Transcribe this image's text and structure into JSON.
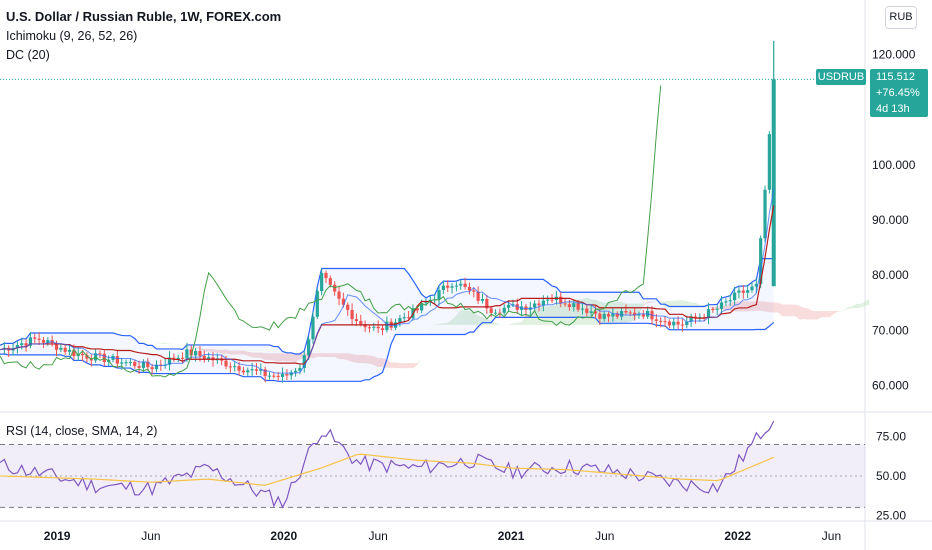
{
  "header": {
    "title": "U.S. Dollar / Russian Ruble, 1W, FOREX.com",
    "ichimoku": "Ichimoku (9, 26, 52, 26)",
    "donchian": "DC (20)",
    "rsi": "RSI (14, close, SMA, 14, 2)"
  },
  "currency_button": "RUB",
  "price": {
    "symbol": "USDRUB",
    "last": "115.512",
    "change": "+76.45%",
    "countdown": "4d 13h"
  },
  "colors": {
    "up": "#26a69a",
    "down": "#ef5350",
    "donchian": "#2962ff",
    "conversion": "#2962ff",
    "base": "#b71c1c",
    "lagging": "#43a047",
    "kumo_green": "#a5d6a7",
    "kumo_red": "#ef9a9a",
    "rsi": "#7e57c2",
    "rsi_ma": "#f7c245"
  },
  "chart_data": [
    {
      "type": "candlestick",
      "title": "U.S. Dollar / Russian Ruble, 1W, FOREX.com",
      "y_axis_ticks": [
        "60.000",
        "70.000",
        "80.000",
        "90.000",
        "100.000",
        "120.000"
      ],
      "ylim": [
        57,
        127
      ],
      "x_axis_ticks": [
        "2019",
        "Jun",
        "2020",
        "Jun",
        "2021",
        "Jun",
        "2022",
        "Jun"
      ],
      "last_price": 115.512,
      "close_path": [
        [
          "2018-10",
          66.5
        ],
        [
          "2018-12",
          68.5
        ],
        [
          "2019-02",
          65.7
        ],
        [
          "2019-04",
          64.6
        ],
        [
          "2019-06",
          63.3
        ],
        [
          "2019-08",
          66.0
        ],
        [
          "2019-10",
          64.0
        ],
        [
          "2019-12",
          62.0
        ],
        [
          "2020-01",
          61.5
        ],
        [
          "2020-02",
          64.0
        ],
        [
          "2020-03",
          80.0
        ],
        [
          "2020-04",
          75.0
        ],
        [
          "2020-05",
          71.5
        ],
        [
          "2020-06",
          70.0
        ],
        [
          "2020-07",
          71.8
        ],
        [
          "2020-08",
          73.5
        ],
        [
          "2020-10",
          79.0
        ],
        [
          "2020-11",
          76.5
        ],
        [
          "2020-12",
          73.8
        ],
        [
          "2021-02",
          74.5
        ],
        [
          "2021-03",
          76.0
        ],
        [
          "2021-04",
          75.2
        ],
        [
          "2021-06",
          72.5
        ],
        [
          "2021-08",
          73.2
        ],
        [
          "2021-10",
          71.0
        ],
        [
          "2021-12",
          74.0
        ],
        [
          "2022-01",
          76.5
        ],
        [
          "2022-02",
          78.0
        ],
        [
          "2022-03",
          115.512
        ]
      ],
      "spike_high": 122.5
    },
    {
      "type": "line",
      "title": "RSI (14, close, SMA, 14, 2)",
      "y_axis_ticks": [
        "25.00",
        "50.00",
        "75.00"
      ],
      "ylim": [
        22,
        90
      ],
      "bands": [
        30,
        70
      ],
      "series": [
        {
          "name": "RSI",
          "x": [
            "2018-10",
            "2018-12",
            "2019-03",
            "2019-06",
            "2019-09",
            "2019-12",
            "2020-01",
            "2020-03",
            "2020-05",
            "2020-08",
            "2020-11",
            "2021-01",
            "2021-04",
            "2021-07",
            "2021-10",
            "2021-12",
            "2022-01",
            "2022-03"
          ],
          "values": [
            57,
            52,
            44,
            42,
            55,
            38,
            33,
            80,
            58,
            55,
            60,
            53,
            56,
            52,
            45,
            43,
            58,
            88
          ]
        },
        {
          "name": "MA",
          "x": [
            "2018-10",
            "2019-03",
            "2019-06",
            "2019-09",
            "2019-12",
            "2020-03",
            "2020-05",
            "2020-08",
            "2020-11",
            "2021-01",
            "2021-04",
            "2021-07",
            "2021-10",
            "2021-12",
            "2022-03"
          ],
          "values": [
            50,
            48,
            46,
            48,
            44,
            55,
            64,
            60,
            58,
            55,
            54,
            51,
            48,
            47,
            62
          ]
        }
      ]
    }
  ]
}
